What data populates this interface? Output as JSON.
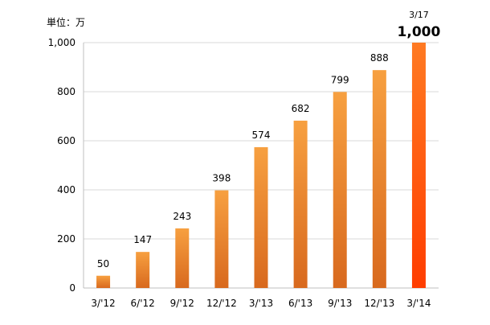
{
  "chart_data": {
    "type": "bar",
    "unit_label": "単位：万",
    "categories": [
      "3/'12",
      "6/'12",
      "9/'12",
      "12/'12",
      "3/'13",
      "6/'13",
      "9/'13",
      "12/'13",
      "3/'14"
    ],
    "values": [
      50,
      147,
      243,
      398,
      574,
      682,
      799,
      888,
      1000
    ],
    "data_labels": [
      "50",
      "147",
      "243",
      "398",
      "574",
      "682",
      "799",
      "888",
      "1,000"
    ],
    "highlight": {
      "index": 8,
      "date_label": "3/17"
    },
    "ylim": [
      0,
      1000
    ],
    "yticks": [
      0,
      200,
      400,
      600,
      800,
      1000
    ],
    "ytick_labels": [
      "0",
      "200",
      "400",
      "600",
      "800",
      "1,000"
    ],
    "grid": true,
    "colors": {
      "bar_top": "#f7a040",
      "bar_bottom": "#d8691e",
      "highlight_top": "#ff7a22",
      "highlight_bottom": "#ff3d00",
      "grid": "#d9d9d9",
      "axis": "#bfbfbf",
      "text": "#000000"
    }
  }
}
